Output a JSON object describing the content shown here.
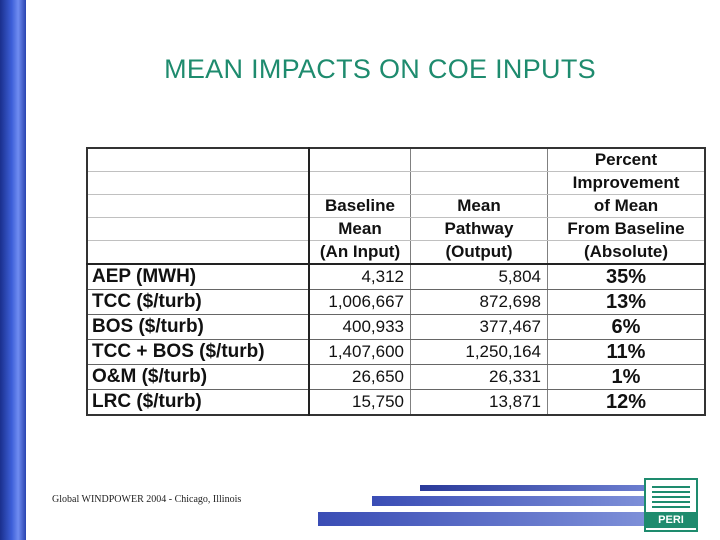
{
  "title": "MEAN IMPACTS ON COE INPUTS",
  "table": {
    "header_lines": [
      {
        "baseline": "",
        "pathway": "",
        "percent": "Percent"
      },
      {
        "baseline": "",
        "pathway": "",
        "percent": "Improvement"
      },
      {
        "baseline": "Baseline",
        "pathway": "Mean",
        "percent": "of Mean"
      },
      {
        "baseline": "Mean",
        "pathway": "Pathway",
        "percent": "From Baseline"
      },
      {
        "baseline": "(An Input)",
        "pathway": "(Output)",
        "percent": "(Absolute)"
      }
    ],
    "rows": [
      {
        "label": "AEP (MWH)",
        "baseline": "4,312",
        "pathway": "5,804",
        "percent": "35%"
      },
      {
        "label": "TCC ($/turb)",
        "baseline": "1,006,667",
        "pathway": "872,698",
        "percent": "13%"
      },
      {
        "label": "BOS ($/turb)",
        "baseline": "400,933",
        "pathway": "377,467",
        "percent": "6%"
      },
      {
        "label": "TCC + BOS ($/turb)",
        "baseline": "1,407,600",
        "pathway": "1,250,164",
        "percent": "11%"
      },
      {
        "label": "O&M ($/turb)",
        "baseline": "26,650",
        "pathway": "26,331",
        "percent": "1%"
      },
      {
        "label": "LRC ($/turb)",
        "baseline": "15,750",
        "pathway": "13,871",
        "percent": "12%"
      }
    ]
  },
  "footer": "Global WINDPOWER 2004 - Chicago, Illinois",
  "logo_text": "PERI",
  "colors": {
    "title": "#1e8b6e",
    "accent_blue": "#3a4db5"
  }
}
